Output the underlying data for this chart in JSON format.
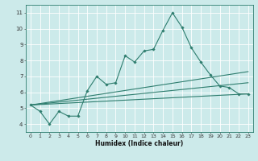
{
  "xlabel": "Humidex (Indice chaleur)",
  "bg_color": "#cceaea",
  "grid_color": "#ffffff",
  "line_color": "#2e7d6e",
  "xlim": [
    -0.5,
    23.5
  ],
  "ylim": [
    3.5,
    11.5
  ],
  "xticks": [
    0,
    1,
    2,
    3,
    4,
    5,
    6,
    7,
    8,
    9,
    10,
    11,
    12,
    13,
    14,
    15,
    16,
    17,
    18,
    19,
    20,
    21,
    22,
    23
  ],
  "yticks": [
    4,
    5,
    6,
    7,
    8,
    9,
    10,
    11
  ],
  "series1_x": [
    0,
    1,
    2,
    3,
    4,
    5,
    6,
    7,
    8,
    9,
    10,
    11,
    12,
    13,
    14,
    15,
    16,
    17,
    18,
    19,
    20,
    21,
    22,
    23
  ],
  "series1_y": [
    5.2,
    4.8,
    4.0,
    4.8,
    4.5,
    4.5,
    6.1,
    7.0,
    6.5,
    6.6,
    8.3,
    7.9,
    8.6,
    8.7,
    9.9,
    11.0,
    10.1,
    8.8,
    7.9,
    7.1,
    6.4,
    6.3,
    5.9,
    5.9
  ],
  "series2_x": [
    0,
    23
  ],
  "series2_y": [
    5.2,
    6.6
  ],
  "series3_x": [
    0,
    23
  ],
  "series3_y": [
    5.2,
    7.3
  ],
  "series4_x": [
    0,
    23
  ],
  "series4_y": [
    5.2,
    5.9
  ],
  "xlabel_fontsize": 5.5,
  "tick_fontsize": 4.5
}
